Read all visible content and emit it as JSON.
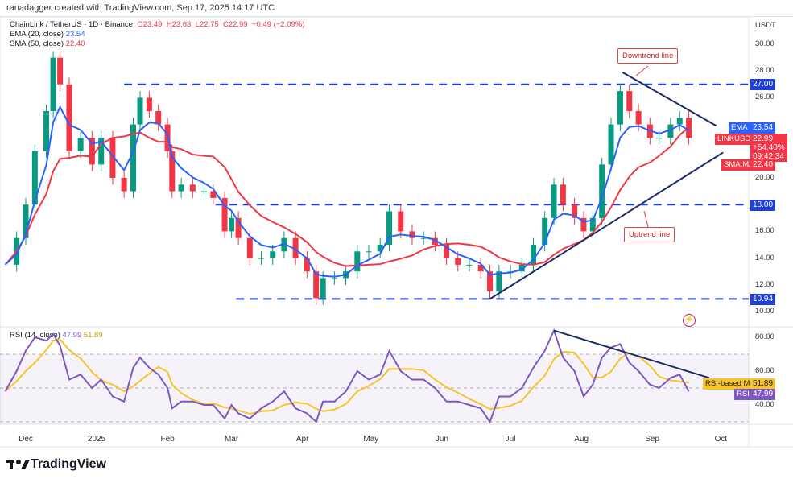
{
  "header": {
    "credit": "ranadagger created with TradingView.com, Sep 17, 2025 14:17 UTC",
    "symbol": "ChainLink / TetherUS · 1D · Binance",
    "o": "O23.49",
    "h": "H23.63",
    "l": "L22.75",
    "c": "C22.99",
    "chg": "−0.49 (−2.09%)",
    "ema_label": "EMA (20, close)",
    "ema_val": "23.54",
    "sma_label": "SMA (50, close)",
    "sma_val": "22.40",
    "rsi_label": "RSI (14, close)",
    "rsi_val": "47.99",
    "rsi_ma_val": "51.89"
  },
  "axis": {
    "currency": "USDT",
    "price_ticks": [
      "30.00",
      "28.00",
      "26.00",
      "20.00",
      "16.00",
      "14.00",
      "12.00",
      "10.00"
    ],
    "rsi_ticks": [
      "80.00",
      "60.00",
      "40.00"
    ],
    "time_ticks": [
      "Dec",
      "2025",
      "Feb",
      "Mar",
      "Apr",
      "May",
      "Jun",
      "Jul",
      "Aug",
      "Sep",
      "Oct"
    ]
  },
  "labels": {
    "level_27": "27.00",
    "level_18": "18.00",
    "level_1094": "10.94",
    "ema_tag": "EMA",
    "ema": "23.54",
    "sym_tag": "LINKUSDT",
    "last": "22.99",
    "pct": "+54.40%",
    "countdown": "09:42:34",
    "sma_tag": "SMA:MA",
    "sma": "22.40",
    "rsima_tag": "RSI-based MA",
    "rsima": "51.89",
    "rsi_tag": "RSI",
    "rsi": "47.99"
  },
  "annotations": {
    "downtrend": "Downtrend line",
    "uptrend": "Uptrend line"
  },
  "logo": "TradingView",
  "colors": {
    "up": "#089981",
    "down": "#f23645",
    "ema": "#2962ff",
    "sma": "#f23645",
    "rsi": "#7e57c2",
    "rsi_ma": "#f7c52b",
    "levels": "#1e3fd8",
    "trend": "#1c2a6b"
  },
  "chart_data": {
    "type": "candlestick",
    "ylim": [
      10,
      30
    ],
    "rsi_ylim": [
      25,
      85
    ],
    "rsi_bands": [
      30,
      50,
      70
    ],
    "levels": [
      27.0,
      18.0,
      10.94
    ],
    "dates": [
      "2024-11-22",
      "2024-11-27",
      "2024-12-01",
      "2024-12-05",
      "2024-12-10",
      "2024-12-13",
      "2024-12-16",
      "2024-12-20",
      "2024-12-25",
      "2024-12-30",
      "2025-01-03",
      "2025-01-08",
      "2025-01-13",
      "2025-01-17",
      "2025-01-20",
      "2025-01-24",
      "2025-01-28",
      "2025-02-01",
      "2025-02-03",
      "2025-02-07",
      "2025-02-12",
      "2025-02-17",
      "2025-02-21",
      "2025-02-26",
      "2025-03-01",
      "2025-03-04",
      "2025-03-09",
      "2025-03-14",
      "2025-03-19",
      "2025-03-24",
      "2025-03-29",
      "2025-04-03",
      "2025-04-07",
      "2025-04-10",
      "2025-04-15",
      "2025-04-20",
      "2025-04-25",
      "2025-04-30",
      "2025-05-05",
      "2025-05-09",
      "2025-05-14",
      "2025-05-19",
      "2025-05-24",
      "2025-05-29",
      "2025-06-03",
      "2025-06-08",
      "2025-06-13",
      "2025-06-18",
      "2025-06-22",
      "2025-06-26",
      "2025-07-01",
      "2025-07-06",
      "2025-07-11",
      "2025-07-16",
      "2025-07-20",
      "2025-07-24",
      "2025-07-29",
      "2025-08-02",
      "2025-08-06",
      "2025-08-10",
      "2025-08-14",
      "2025-08-18",
      "2025-08-22",
      "2025-08-26",
      "2025-08-31",
      "2025-09-04",
      "2025-09-09",
      "2025-09-13",
      "2025-09-17"
    ],
    "close": [
      13.5,
      15.5,
      18,
      22,
      25,
      29,
      27,
      22,
      23,
      21,
      23,
      20,
      19,
      24,
      26,
      25,
      24,
      22,
      19,
      19.5,
      19,
      19,
      18.5,
      16,
      17,
      15.5,
      14,
      14,
      14.5,
      15.5,
      14,
      13,
      11,
      12.5,
      12.5,
      13,
      14.5,
      14.5,
      15,
      17.5,
      16,
      15.5,
      15.5,
      15,
      14,
      13.5,
      13.5,
      13,
      11.5,
      13,
      13,
      13.5,
      15,
      17,
      19.5,
      18,
      17,
      16,
      17,
      21,
      24,
      26.5,
      25,
      24,
      23,
      23,
      24,
      24.5,
      22.99
    ],
    "rsi": [
      48,
      60,
      72,
      80,
      78,
      82,
      75,
      55,
      58,
      50,
      55,
      45,
      42,
      62,
      68,
      62,
      58,
      50,
      38,
      42,
      42,
      40,
      40,
      32,
      40,
      35,
      32,
      38,
      42,
      48,
      38,
      35,
      30,
      42,
      42,
      48,
      60,
      55,
      58,
      72,
      60,
      55,
      55,
      50,
      42,
      42,
      40,
      38,
      30,
      45,
      45,
      50,
      62,
      72,
      84,
      68,
      60,
      45,
      52,
      68,
      74,
      76,
      65,
      60,
      52,
      50,
      56,
      58,
      47.99
    ],
    "trendlines": [
      {
        "name": "downtrend",
        "from": [
          "2025-08-19",
          27.9
        ],
        "to": [
          "2025-09-29",
          23.9
        ]
      },
      {
        "name": "uptrend",
        "from": [
          "2025-06-22",
          10.94
        ],
        "to": [
          "2025-10-02",
          21.9
        ]
      },
      {
        "name": "rsi-downtrend",
        "from": [
          "2025-07-20",
          84
        ],
        "to": [
          "2025-09-26",
          56
        ]
      }
    ]
  }
}
